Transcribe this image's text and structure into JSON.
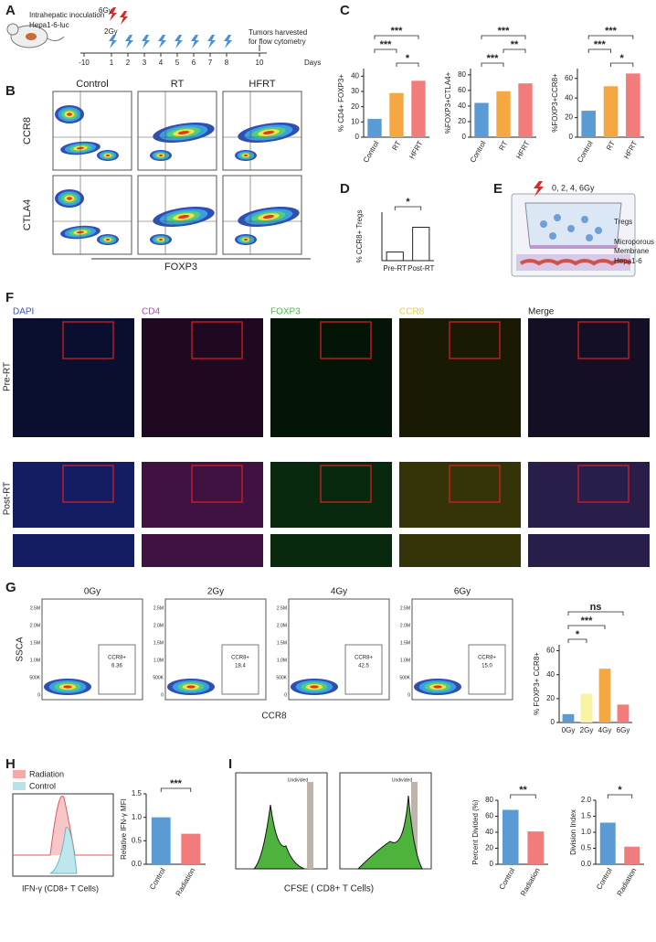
{
  "panel_labels": [
    "A",
    "B",
    "C",
    "D",
    "E",
    "F",
    "G",
    "H",
    "I"
  ],
  "timeline": {
    "inoculation": "Intrahepatic inoculation",
    "cells": "Hepa1-6-luc",
    "dose_high": "6Gy",
    "dose_low": "2Gy",
    "harvest": [
      "Tumors harvested",
      "for flow cytometry"
    ],
    "days": [
      -10,
      1,
      2,
      3,
      4,
      5,
      6,
      7,
      8,
      10
    ],
    "axis_label": "Days"
  },
  "flow_b": {
    "columns": [
      "Control",
      "RT",
      "HFRT"
    ],
    "rows": [
      "CCR8",
      "CTLA4"
    ],
    "x_label": "FOXP3"
  },
  "transwell": {
    "dose": "0, 2, 4, 6Gy",
    "labels": [
      "Tregs",
      "Microporous",
      "Membrane",
      "Hepa1-6"
    ]
  },
  "if_panel": {
    "channels": [
      "DAPI",
      "CD4",
      "FOXP3",
      "CCR8",
      "Merge"
    ],
    "rows": [
      "Pre-RT",
      "Post-RT"
    ]
  },
  "flow_g": {
    "doses": [
      "0Gy",
      "2Gy",
      "4Gy",
      "6Gy"
    ],
    "y_label": "SSCA",
    "x_label": "CCR8",
    "gate": "CCR8+",
    "gate_values": [
      "6.36",
      "18.4",
      "42.5",
      "15.0"
    ],
    "yticks": [
      "2.5M",
      "2.0M",
      "1.5M",
      "1.0M",
      "500K",
      "0"
    ]
  },
  "h_hist": {
    "legend": [
      "Radiation",
      "Control"
    ],
    "legend_colors": [
      "#f4a9a9",
      "#b9e2e8"
    ],
    "x_label": "IFN-γ (CD8+ T Cells)"
  },
  "i_hist": {
    "gate": "Undivided",
    "x_label": "CFSE ( CD8+ T Cells)"
  },
  "chart_data": [
    {
      "type": "bar",
      "y_label": "% CD4+ FOXP3+",
      "categories": [
        "Control",
        "RT",
        "HFRT"
      ],
      "values": [
        12,
        29,
        37
      ],
      "colors": [
        "#5b9bd5",
        "#f5a742",
        "#f27c7c"
      ],
      "ylim": [
        0,
        45
      ],
      "yticks": [
        0,
        10,
        20,
        30,
        40
      ],
      "annotations": [
        {
          "text": "*",
          "between": [
            "RT",
            "HFRT"
          ]
        },
        {
          "text": "***",
          "between": [
            "Control",
            "RT"
          ]
        },
        {
          "text": "***",
          "between": [
            "Control",
            "HFRT"
          ]
        }
      ]
    },
    {
      "type": "bar",
      "y_label": "%FOXP3+CTLA4+",
      "categories": [
        "Control",
        "RT",
        "HFRT"
      ],
      "values": [
        44,
        59,
        69
      ],
      "colors": [
        "#5b9bd5",
        "#f5a742",
        "#f27c7c"
      ],
      "ylim": [
        0,
        88
      ],
      "yticks": [
        0,
        20,
        40,
        60,
        80
      ],
      "annotations": [
        {
          "text": "***",
          "between": [
            "Control",
            "RT"
          ]
        },
        {
          "text": "**",
          "between": [
            "RT",
            "HFRT"
          ]
        },
        {
          "text": "***",
          "between": [
            "Control",
            "HFRT"
          ]
        }
      ]
    },
    {
      "type": "bar",
      "y_label": "%FOXP3+CCR8+",
      "categories": [
        "Control",
        "RT",
        "HFRT"
      ],
      "values": [
        27,
        52,
        65
      ],
      "colors": [
        "#5b9bd5",
        "#f5a742",
        "#f27c7c"
      ],
      "ylim": [
        0,
        70
      ],
      "yticks": [
        0,
        20,
        40,
        60
      ],
      "annotations": [
        {
          "text": "*",
          "between": [
            "RT",
            "HFRT"
          ]
        },
        {
          "text": "***",
          "between": [
            "Control",
            "RT"
          ]
        },
        {
          "text": "***",
          "between": [
            "Control",
            "HFRT"
          ]
        }
      ]
    },
    {
      "type": "bar",
      "y_label": "% CCR8+ Tregs",
      "categories": [
        "Pre-RT",
        "Post-RT"
      ],
      "values": [
        1.6,
        6.2
      ],
      "colors": [
        "#ffffff",
        "#ffffff"
      ],
      "ylim": [
        0,
        9
      ],
      "yticks": [],
      "annotations": [
        {
          "text": "*",
          "between": [
            "Pre-RT",
            "Post-RT"
          ]
        }
      ]
    },
    {
      "type": "bar",
      "y_label": "% FOXP3+ CCR8+",
      "categories": [
        "0Gy",
        "2Gy",
        "4Gy",
        "6Gy"
      ],
      "values": [
        7,
        24,
        45,
        15
      ],
      "colors": [
        "#5b9bd5",
        "#f7f3a3",
        "#f5a742",
        "#f27c7c"
      ],
      "ylim": [
        0,
        65
      ],
      "yticks": [
        0,
        20,
        40,
        60
      ],
      "annotations": [
        {
          "text": "*",
          "between": [
            "0Gy",
            "2Gy"
          ]
        },
        {
          "text": "***",
          "between": [
            "0Gy",
            "4Gy"
          ]
        },
        {
          "text": "ns",
          "between": [
            "0Gy",
            "6Gy"
          ]
        }
      ]
    },
    {
      "type": "bar",
      "y_label": "Relative IFN-γ MFI",
      "categories": [
        "Control",
        "Radiation"
      ],
      "values": [
        1.0,
        0.65
      ],
      "colors": [
        "#5b9bd5",
        "#f27c7c"
      ],
      "ylim": [
        0,
        1.5
      ],
      "yticks": [
        {
          "value": 0,
          "label": "0.0"
        },
        {
          "value": 0.5,
          "label": "0.5"
        },
        {
          "value": 1,
          "label": "1.0"
        },
        {
          "value": 1.5,
          "label": "1.5"
        }
      ],
      "annotations": [
        {
          "text": "***",
          "between": [
            "Control",
            "Radiation"
          ]
        }
      ]
    },
    {
      "type": "bar",
      "y_label": "Percent Divided (%)",
      "categories": [
        "Control",
        "Radiation"
      ],
      "values": [
        68,
        41
      ],
      "colors": [
        "#5b9bd5",
        "#f27c7c"
      ],
      "ylim": [
        0,
        80
      ],
      "yticks": [
        0,
        20,
        40,
        60,
        80
      ],
      "annotations": [
        {
          "text": "**",
          "between": [
            "Control",
            "Radiation"
          ]
        }
      ]
    },
    {
      "type": "bar",
      "y_label": "Division Index",
      "categories": [
        "Control",
        "Radiation"
      ],
      "values": [
        1.3,
        0.55
      ],
      "colors": [
        "#5b9bd5",
        "#f27c7c"
      ],
      "ylim": [
        0,
        2
      ],
      "yticks": [
        {
          "value": 0,
          "label": "0.0"
        },
        {
          "value": 0.5,
          "label": "0.5"
        },
        {
          "value": 1,
          "label": "1.0"
        },
        {
          "value": 1.5,
          "label": "1.5"
        },
        {
          "value": 2,
          "label": "2.0"
        }
      ],
      "annotations": [
        {
          "text": "*",
          "between": [
            "Control",
            "Radiation"
          ]
        }
      ]
    }
  ]
}
